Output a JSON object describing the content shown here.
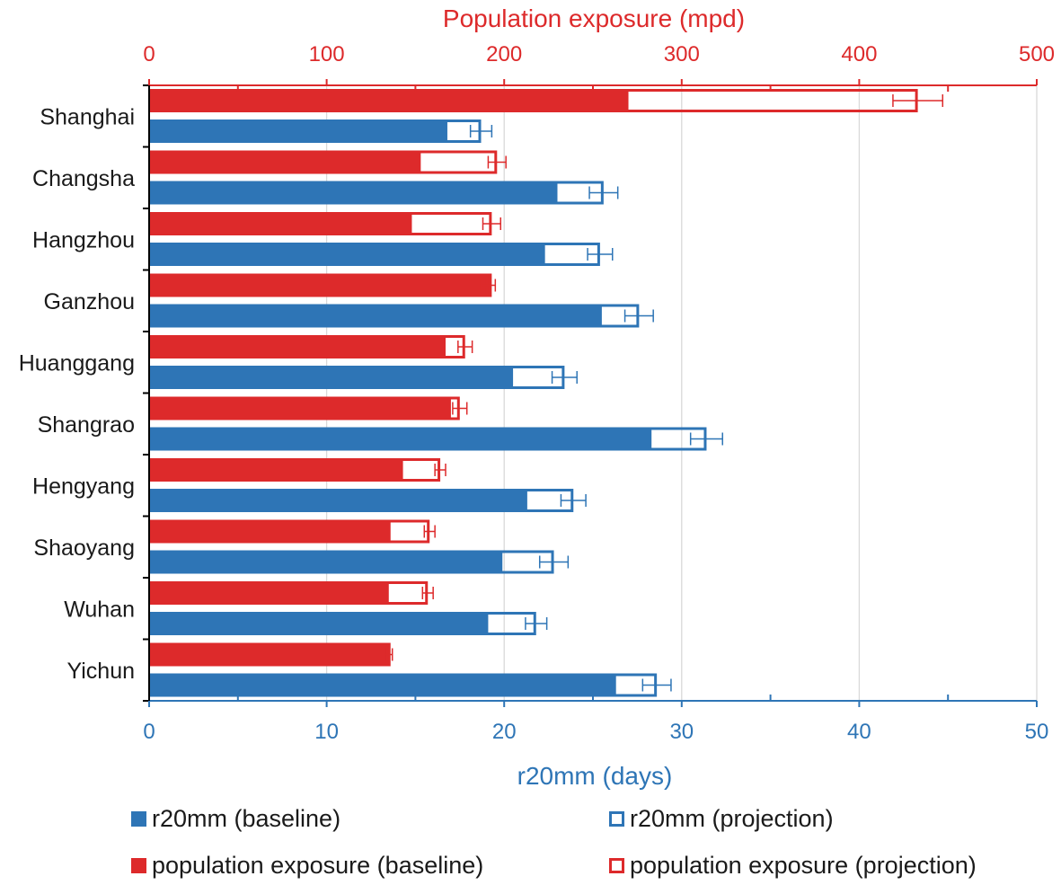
{
  "chart_data": {
    "type": "bar",
    "orientation": "horizontal",
    "categories": [
      "Shanghai",
      "Changsha",
      "Hangzhou",
      "Ganzhou",
      "Huanggang",
      "Shangrao",
      "Hengyang",
      "Shaoyang",
      "Wuhan",
      "Yichun"
    ],
    "top_axis": {
      "title": "Population exposure (mpd)",
      "range": [
        0,
        500
      ],
      "ticks": [
        "0",
        "100",
        "200",
        "300",
        "400",
        "500"
      ],
      "color": "#dd2a2b"
    },
    "bottom_axis": {
      "title": "r20mm (days)",
      "range": [
        0,
        50
      ],
      "ticks": [
        "0",
        "10",
        "20",
        "30",
        "40",
        "50"
      ],
      "color": "#2e75b6"
    },
    "series": [
      {
        "name": "population exposure (baseline)",
        "axis": "top",
        "values": [
          270,
          153,
          148,
          193,
          167,
          170,
          143,
          136,
          135,
          136
        ],
        "color": "#dd2a2b",
        "style": "filled"
      },
      {
        "name": "population exposure (projection)",
        "axis": "top",
        "values": [
          433,
          196,
          193,
          191,
          178,
          175,
          164,
          158,
          157,
          135
        ],
        "errors": [
          14,
          5,
          5,
          4,
          4,
          4,
          3,
          3,
          3,
          2
        ],
        "color": "#dd2a2b",
        "style": "outline"
      },
      {
        "name": "r20mm (baseline)",
        "axis": "bottom",
        "values": [
          16.8,
          23,
          22.3,
          25.5,
          20.5,
          28.3,
          21.3,
          19.9,
          19.1,
          26.3
        ],
        "color": "#2e75b6",
        "style": "filled"
      },
      {
        "name": "r20mm (projection)",
        "axis": "bottom",
        "values": [
          18.7,
          25.6,
          25.4,
          27.6,
          23.4,
          31.4,
          23.9,
          22.8,
          21.8,
          28.6
        ],
        "errors": [
          0.6,
          0.8,
          0.7,
          0.8,
          0.7,
          0.9,
          0.7,
          0.8,
          0.6,
          0.8
        ],
        "color": "#2e75b6",
        "style": "outline"
      }
    ],
    "legend": [
      {
        "label": "r20mm (baseline)",
        "color": "#2e75b6",
        "style": "filled"
      },
      {
        "label": "r20mm (projection)",
        "color": "#2e75b6",
        "style": "outline"
      },
      {
        "label": "population exposure (baseline)",
        "color": "#dd2a2b",
        "style": "filled"
      },
      {
        "label": "population exposure (projection)",
        "color": "#dd2a2b",
        "style": "outline"
      }
    ],
    "grid": true,
    "legend_position": "bottom"
  }
}
